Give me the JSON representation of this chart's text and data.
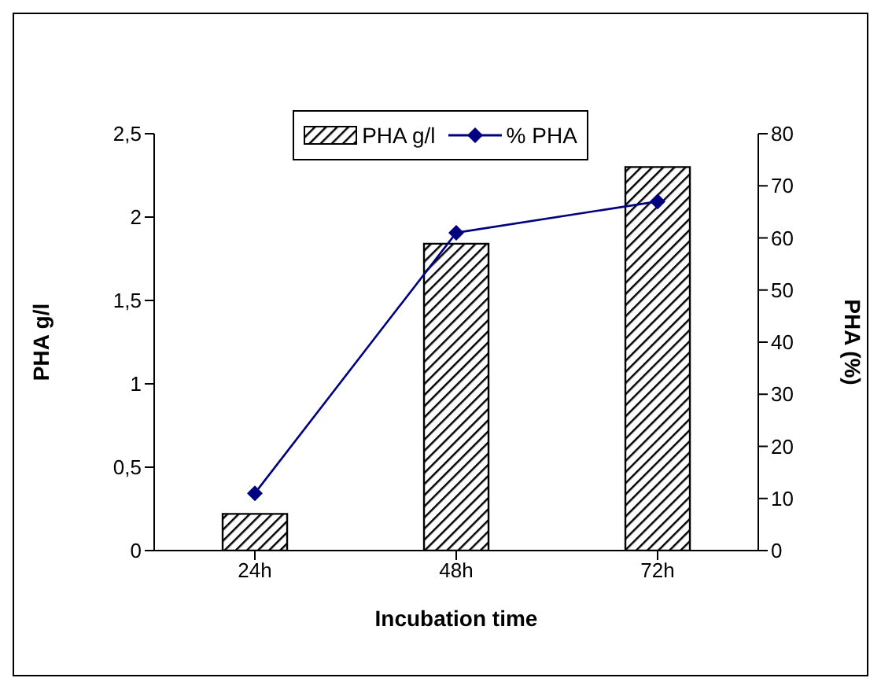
{
  "chart_data": {
    "type": "bar",
    "xlabel": "Incubation time",
    "ylabel": "PHA g/l",
    "y2label": "PHA (%)",
    "categories": [
      "24h",
      "48h",
      "72h"
    ],
    "series": [
      {
        "name": "PHA g/l",
        "color": "#000000",
        "values": [
          0.22,
          1.84,
          2.3
        ]
      },
      {
        "name": "% PHA",
        "type": "line",
        "axis": "y2",
        "color": "#000080",
        "values": [
          11,
          61,
          67
        ]
      }
    ],
    "ylim": [
      0,
      2.5
    ],
    "yticks": [
      0,
      {
        "value": 0.5,
        "label": "0,5"
      },
      1,
      {
        "value": 1.5,
        "label": "1,5"
      },
      2,
      {
        "value": 2.5,
        "label": "2,5"
      }
    ],
    "y2lim": [
      0,
      80
    ],
    "y2ticks": [
      0,
      10,
      20,
      30,
      40,
      50,
      60,
      70,
      80
    ],
    "marker": "diamond",
    "legend": "top",
    "grid": false
  }
}
